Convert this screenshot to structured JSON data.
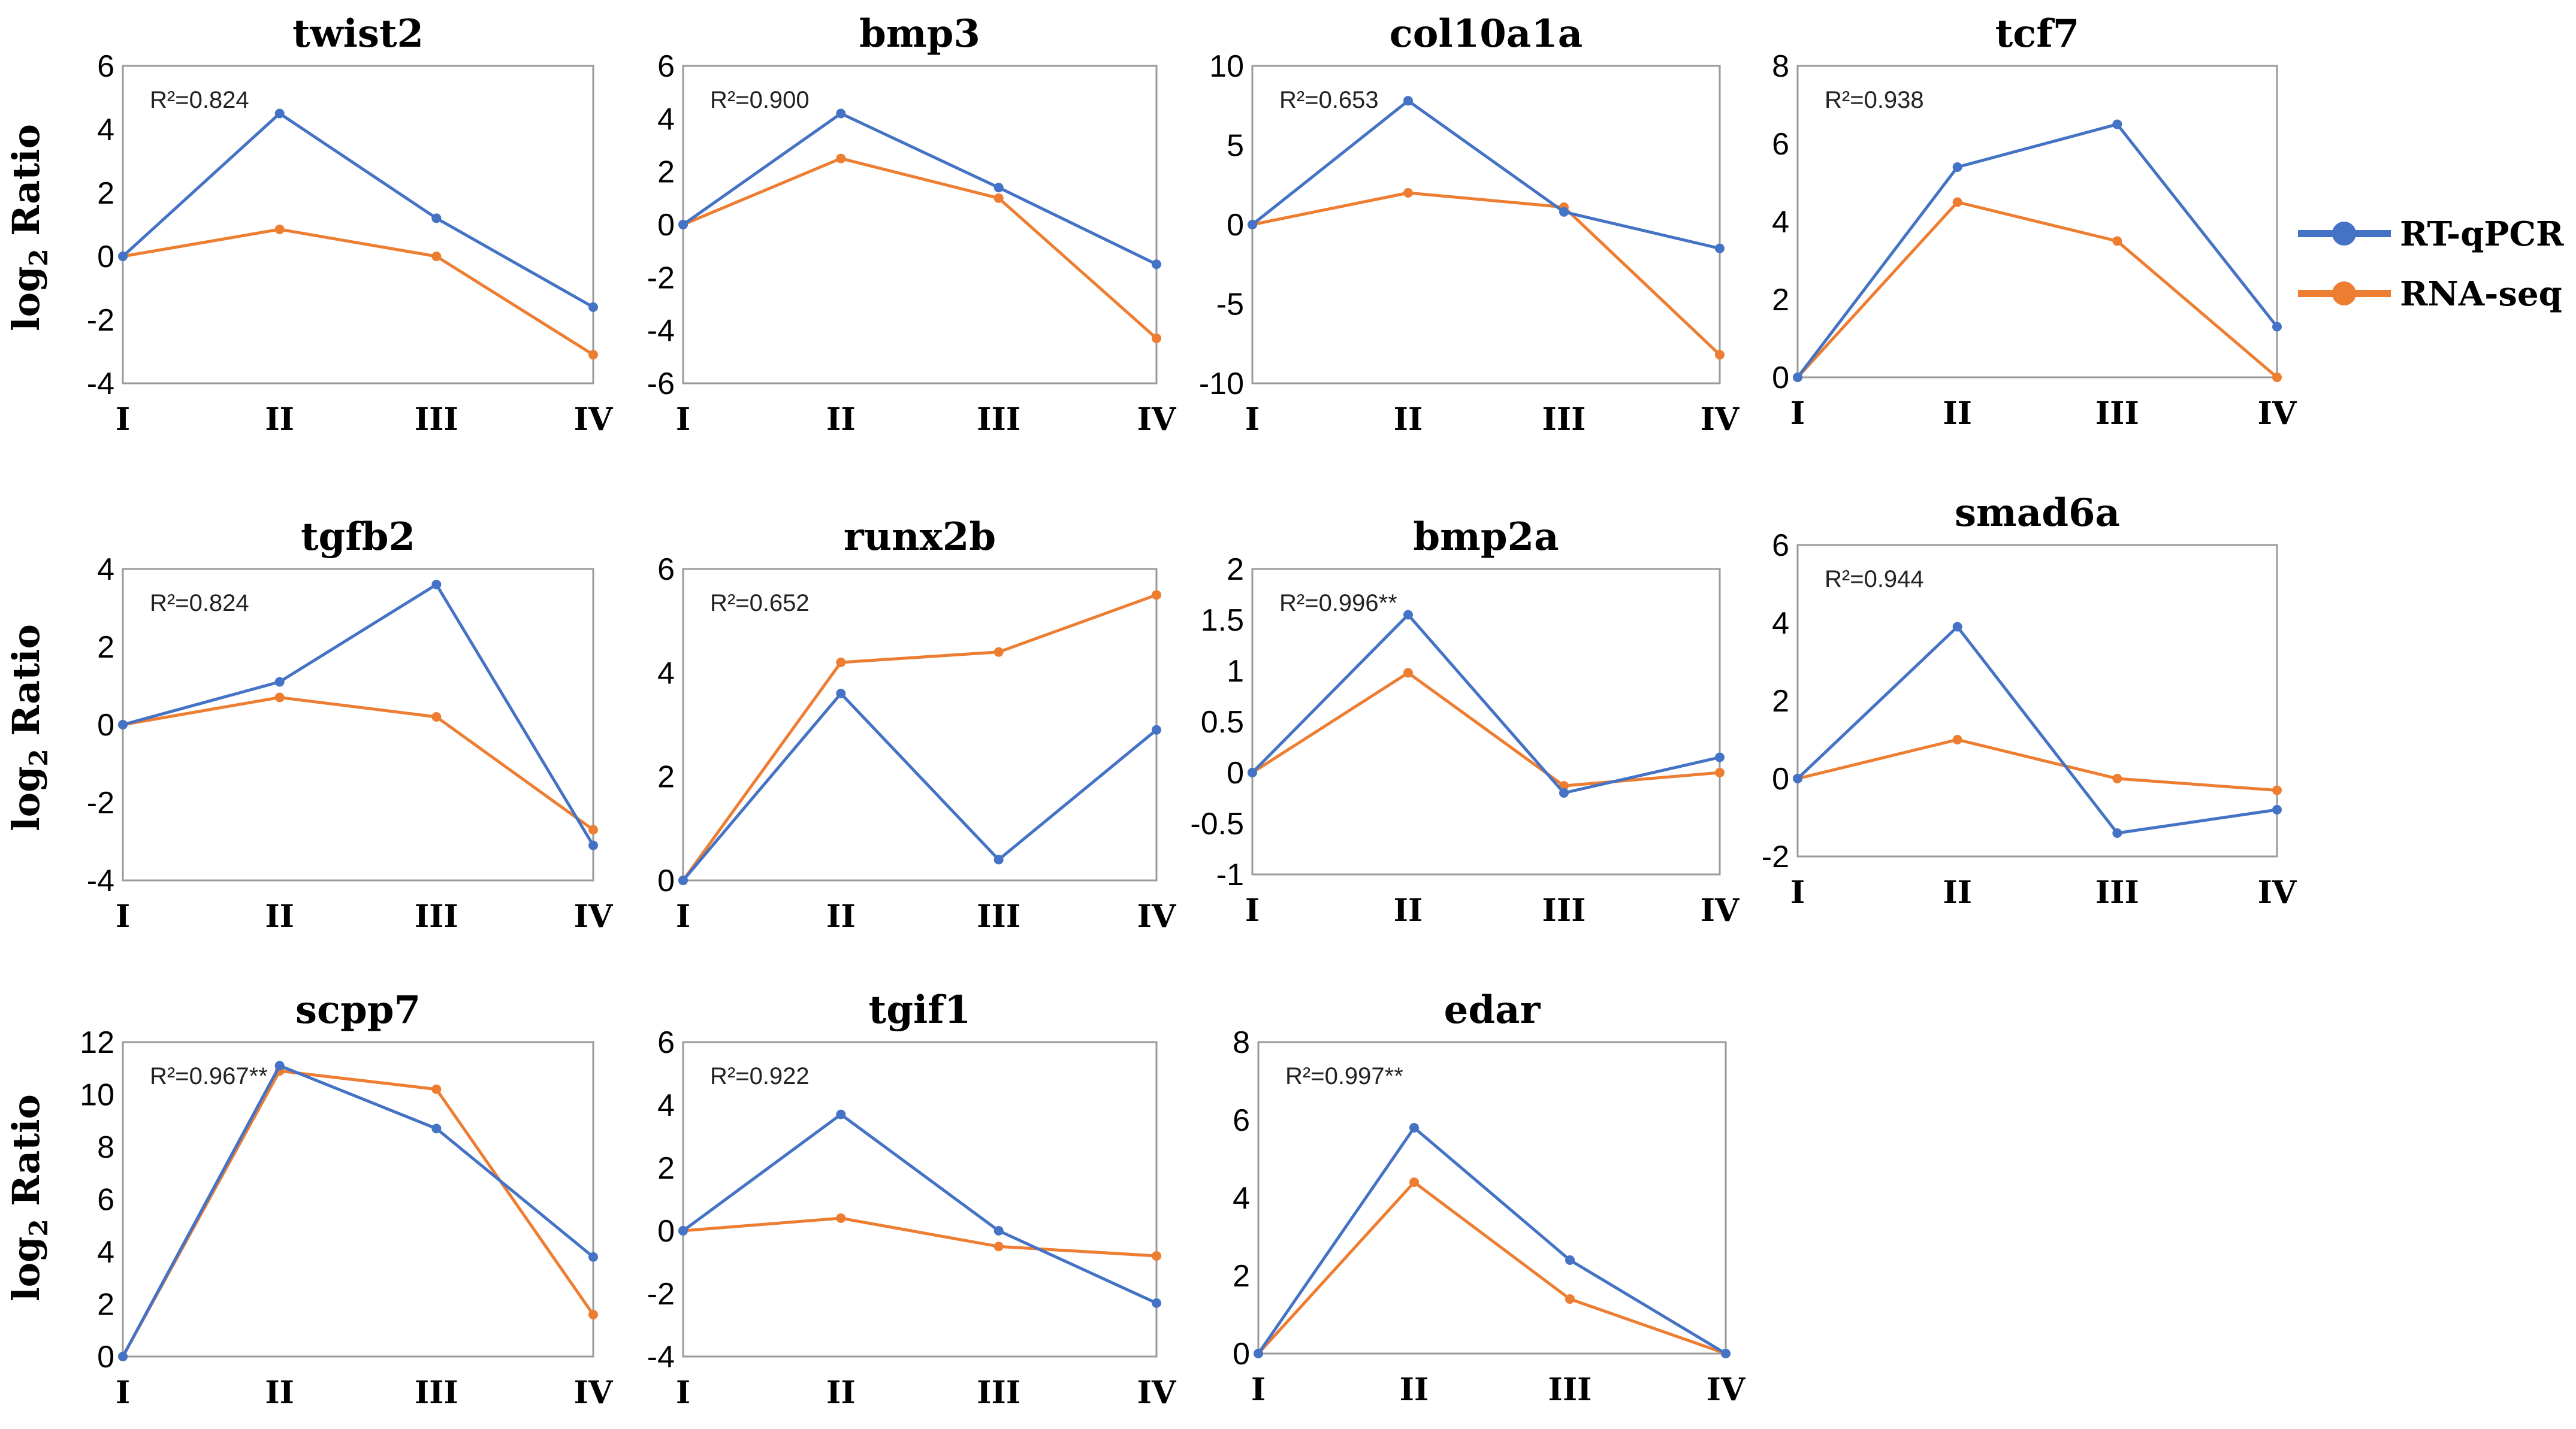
{
  "colors": {
    "rt_qpcr": "#4472C4",
    "rna_seq": "#ED7D31",
    "frame": "#9a9a9a"
  },
  "legend": {
    "position": "right",
    "entries": [
      {
        "label": "RT-qPCR",
        "series": "rt_qpcr"
      },
      {
        "label": "RNA-seq",
        "series": "rna_seq"
      }
    ]
  },
  "y_axis_label": {
    "main": "log",
    "sub": "2",
    "rest": " Ratio"
  },
  "chart_data": [
    {
      "type": "line",
      "title": "twist2",
      "annotation": "R²=0.824",
      "categories": [
        "I",
        "II",
        "III",
        "IV"
      ],
      "ylim": [
        -4,
        6
      ],
      "yticks": [
        "6",
        "4",
        "2",
        "0",
        "-2",
        "-4"
      ],
      "series": [
        {
          "name": "RT-qPCR",
          "values": [
            0,
            4.5,
            1.2,
            -1.6
          ]
        },
        {
          "name": "RNA-seq",
          "values": [
            0,
            0.85,
            0,
            -3.1
          ]
        }
      ]
    },
    {
      "type": "line",
      "title": "bmp3",
      "annotation": "R²=0.900",
      "categories": [
        "I",
        "II",
        "III",
        "IV"
      ],
      "ylim": [
        -6,
        6
      ],
      "yticks": [
        "6",
        "4",
        "2",
        "0",
        "-2",
        "-4",
        "-6"
      ],
      "series": [
        {
          "name": "RT-qPCR",
          "values": [
            0,
            4.2,
            1.4,
            -1.5
          ]
        },
        {
          "name": "RNA-seq",
          "values": [
            0,
            2.5,
            1.0,
            -4.3
          ]
        }
      ]
    },
    {
      "type": "line",
      "title": "col10a1a",
      "annotation": "R²=0.653",
      "categories": [
        "I",
        "II",
        "III",
        "IV"
      ],
      "ylim": [
        -10,
        10
      ],
      "yticks": [
        "10",
        "5",
        "0",
        "-5",
        "-10"
      ],
      "series": [
        {
          "name": "RT-qPCR",
          "values": [
            0,
            7.8,
            0.8,
            -1.5
          ]
        },
        {
          "name": "RNA-seq",
          "values": [
            0,
            2.0,
            1.1,
            -8.2
          ]
        }
      ]
    },
    {
      "type": "line",
      "title": "tcf7",
      "annotation": "R²=0.938",
      "categories": [
        "I",
        "II",
        "III",
        "IV"
      ],
      "ylim": [
        0,
        8
      ],
      "yticks": [
        "8",
        "6",
        "4",
        "2",
        "0"
      ],
      "series": [
        {
          "name": "RT-qPCR",
          "values": [
            0,
            5.4,
            6.5,
            1.3
          ]
        },
        {
          "name": "RNA-seq",
          "values": [
            0,
            4.5,
            3.5,
            0
          ]
        }
      ]
    },
    {
      "type": "line",
      "title": "tgfb2",
      "annotation": "R²=0.824",
      "categories": [
        "I",
        "II",
        "III",
        "IV"
      ],
      "ylim": [
        -4,
        4
      ],
      "yticks": [
        "4",
        "2",
        "0",
        "-2",
        "-4"
      ],
      "series": [
        {
          "name": "RT-qPCR",
          "values": [
            0,
            1.1,
            3.6,
            -3.1
          ]
        },
        {
          "name": "RNA-seq",
          "values": [
            0,
            0.7,
            0.2,
            -2.7
          ]
        }
      ]
    },
    {
      "type": "line",
      "title": "runx2b",
      "annotation": "R²=0.652",
      "categories": [
        "I",
        "II",
        "III",
        "IV"
      ],
      "ylim": [
        0,
        6
      ],
      "yticks": [
        "6",
        "4",
        "2",
        "0"
      ],
      "series": [
        {
          "name": "RT-qPCR",
          "values": [
            0,
            3.6,
            0.4,
            2.9
          ]
        },
        {
          "name": "RNA-seq",
          "values": [
            0,
            4.2,
            4.4,
            5.5
          ]
        }
      ]
    },
    {
      "type": "line",
      "title": "bmp2a",
      "annotation": "R²=0.996**",
      "categories": [
        "I",
        "II",
        "III",
        "IV"
      ],
      "ylim": [
        -1,
        2
      ],
      "yticks": [
        "2",
        "1.5",
        "1",
        "0.5",
        "0",
        "-0.5",
        "-1"
      ],
      "series": [
        {
          "name": "RT-qPCR",
          "values": [
            0,
            1.55,
            -0.2,
            0.15
          ]
        },
        {
          "name": "RNA-seq",
          "values": [
            0,
            0.98,
            -0.13,
            0
          ]
        }
      ]
    },
    {
      "type": "line",
      "title": "smad6a",
      "annotation": "R²=0.944",
      "categories": [
        "I",
        "II",
        "III",
        "IV"
      ],
      "ylim": [
        -2,
        6
      ],
      "yticks": [
        "6",
        "4",
        "2",
        "0",
        "-2"
      ],
      "series": [
        {
          "name": "RT-qPCR",
          "values": [
            0,
            3.9,
            -1.4,
            -0.8
          ]
        },
        {
          "name": "RNA-seq",
          "values": [
            0,
            1.0,
            0,
            -0.3
          ]
        }
      ]
    },
    {
      "type": "line",
      "title": "scpp7",
      "annotation": "R²=0.967**",
      "categories": [
        "I",
        "II",
        "III",
        "IV"
      ],
      "ylim": [
        0,
        12
      ],
      "yticks": [
        "12",
        "10",
        "8",
        "6",
        "4",
        "2",
        "0"
      ],
      "series": [
        {
          "name": "RT-qPCR",
          "values": [
            0,
            11.1,
            8.7,
            3.8
          ]
        },
        {
          "name": "RNA-seq",
          "values": [
            0,
            10.9,
            10.2,
            1.6
          ]
        }
      ]
    },
    {
      "type": "line",
      "title": "tgif1",
      "annotation": "R²=0.922",
      "categories": [
        "I",
        "II",
        "III",
        "IV"
      ],
      "ylim": [
        -4,
        6
      ],
      "yticks": [
        "6",
        "4",
        "2",
        "0",
        "-2",
        "-4"
      ],
      "series": [
        {
          "name": "RT-qPCR",
          "values": [
            0,
            3.7,
            0,
            -2.3
          ]
        },
        {
          "name": "RNA-seq",
          "values": [
            0,
            0.4,
            -0.5,
            -0.8
          ]
        }
      ]
    },
    {
      "type": "line",
      "title": "edar",
      "annotation": "R²=0.997**",
      "categories": [
        "I",
        "II",
        "III",
        "IV"
      ],
      "ylim": [
        0,
        8
      ],
      "yticks": [
        "8",
        "6",
        "4",
        "2",
        "0"
      ],
      "series": [
        {
          "name": "RT-qPCR",
          "values": [
            0,
            5.8,
            2.4,
            0
          ]
        },
        {
          "name": "RNA-seq",
          "values": [
            0,
            4.4,
            1.4,
            0
          ]
        }
      ]
    }
  ]
}
